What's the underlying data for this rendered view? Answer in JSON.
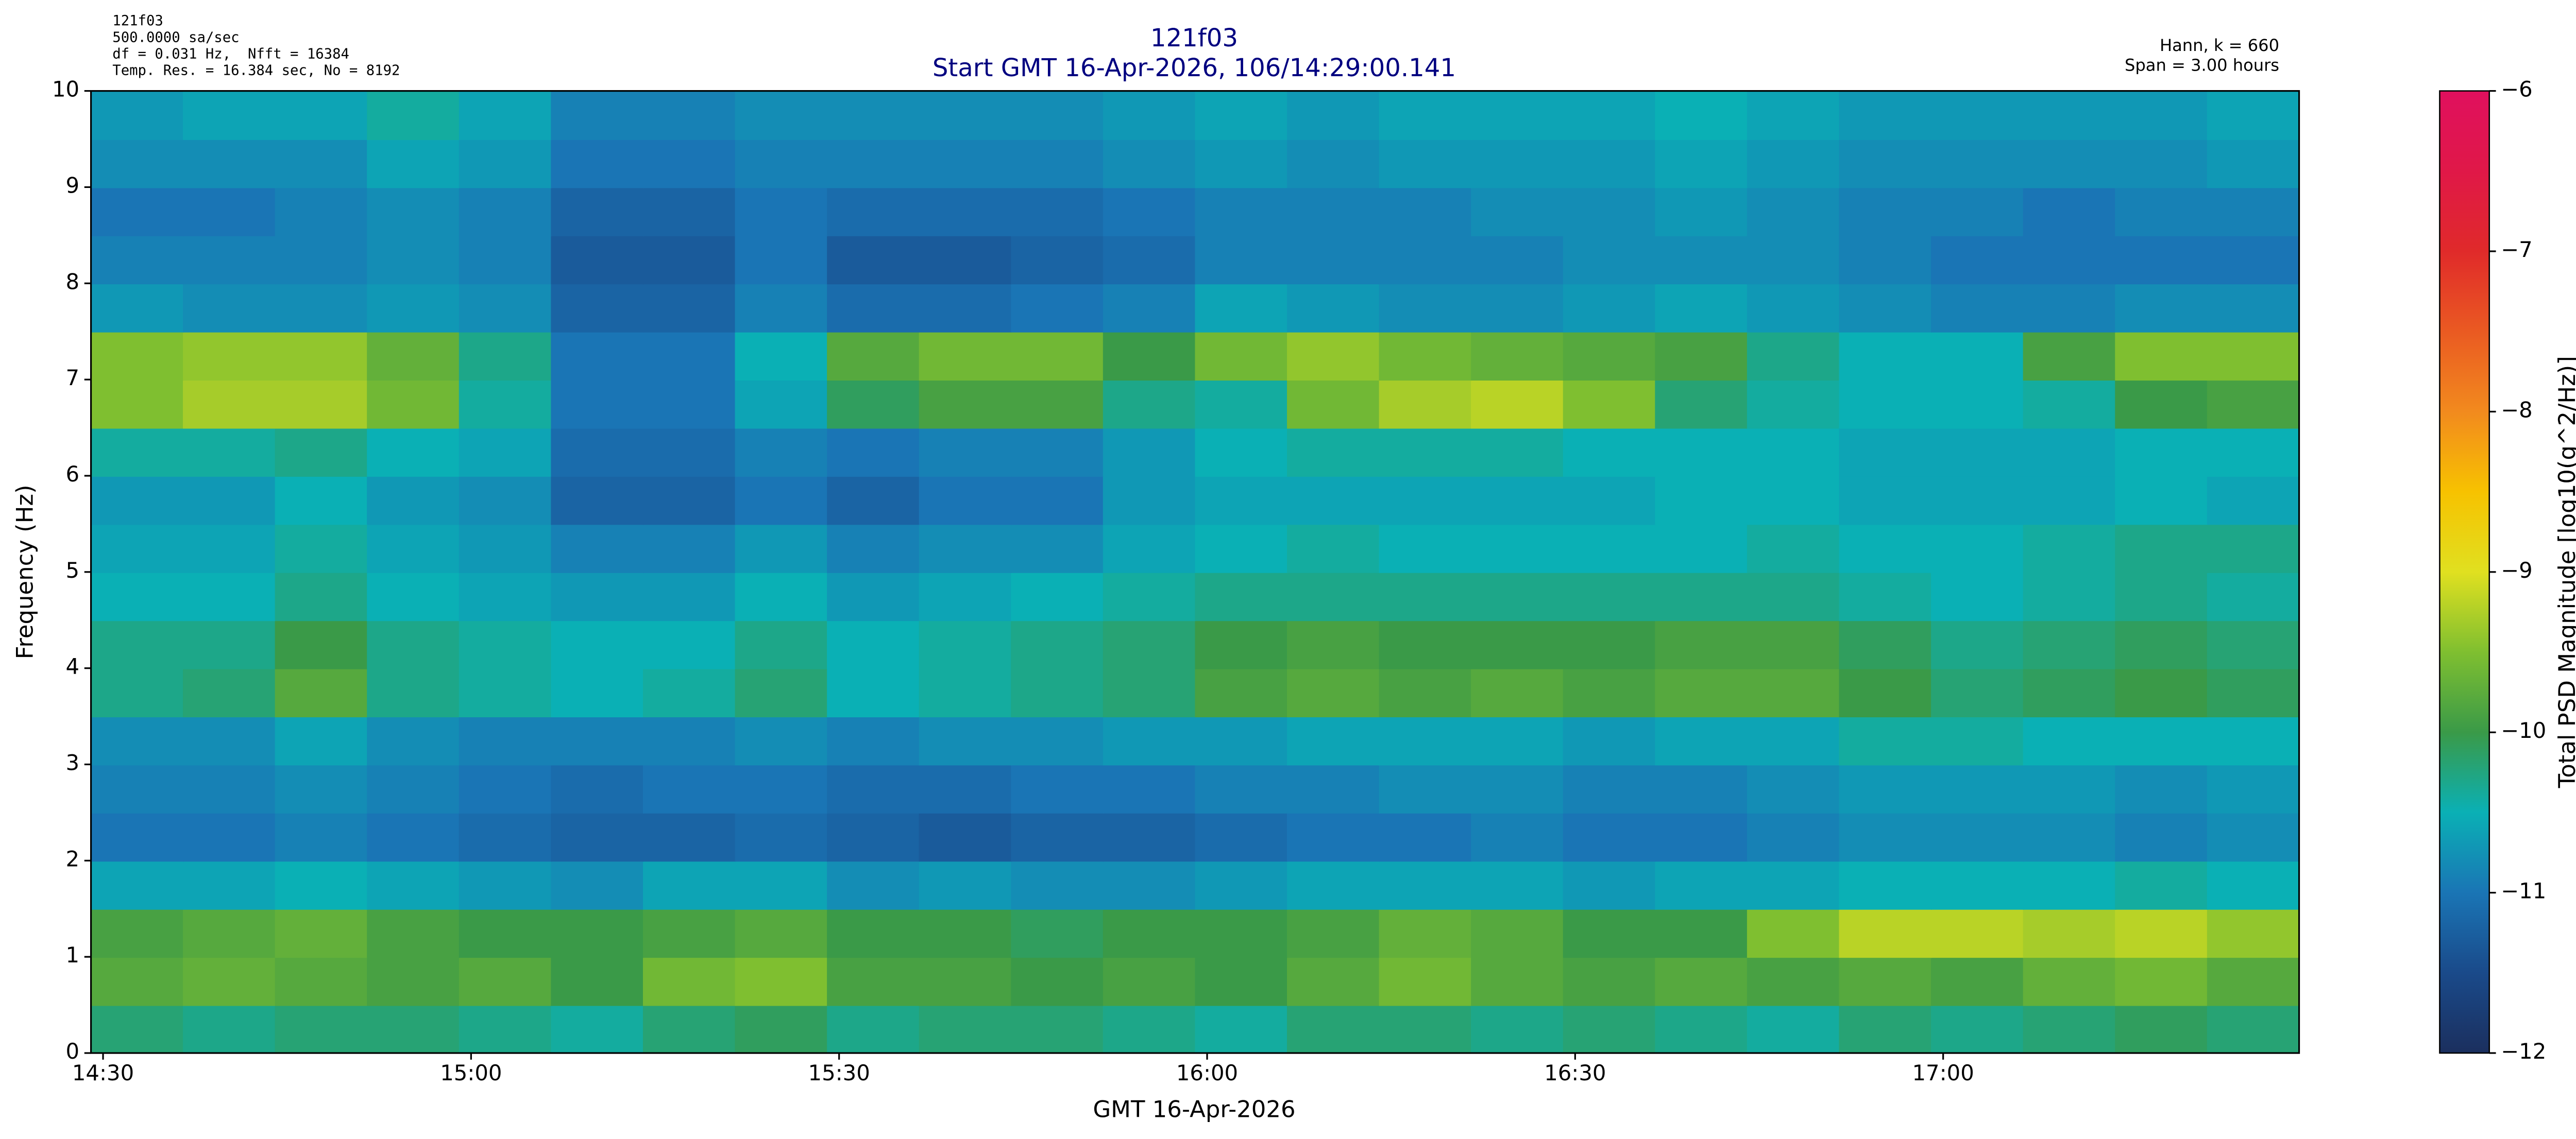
{
  "chart_data": {
    "type": "heatmap",
    "title": "121f03",
    "subtitle": "Start GMT 16-Apr-2026, 106/14:29:00.141",
    "annotations_left": [
      "121f03",
      "500.0000 sa/sec",
      "df = 0.031 Hz,  Nfft = 16384",
      "Temp. Res. = 16.384 sec, No = 8192"
    ],
    "annotations_right": [
      "Hann, k = 660",
      "Span = 3.00 hours"
    ],
    "x_label": "GMT 16-Apr-2026",
    "y_label": "Frequency (Hz)",
    "colorbar_label": "Total PSD Magnitude [log10(g^2/Hz)]",
    "xlim": [
      14.4836,
      17.4836
    ],
    "xticks": [
      {
        "value": 14.5,
        "label": "14:30"
      },
      {
        "value": 15,
        "label": "15:00"
      },
      {
        "value": 15.5,
        "label": "15:30"
      },
      {
        "value": 16,
        "label": "16:00"
      },
      {
        "value": 16.5,
        "label": "16:30"
      },
      {
        "value": 17,
        "label": "17:00"
      }
    ],
    "ylim": [
      0,
      10
    ],
    "yticks": [
      0,
      1,
      2,
      3,
      4,
      5,
      6,
      7,
      8,
      9,
      10
    ],
    "zlim": [
      -12,
      -6
    ],
    "zticks": [
      {
        "value": -12,
        "label": "−12"
      },
      {
        "value": -11,
        "label": "−11"
      },
      {
        "value": -10,
        "label": "−10"
      },
      {
        "value": -9,
        "label": "−9"
      },
      {
        "value": -8,
        "label": "−8"
      },
      {
        "value": -7,
        "label": "−7"
      },
      {
        "value": -6,
        "label": "−6"
      }
    ],
    "colormap": [
      "#1b2f5e",
      "#1a4a8a",
      "#1a75b5",
      "#0ab0b5",
      "#3a9a48",
      "#7fbf30",
      "#e0e020",
      "#f7c200",
      "#f28a1e",
      "#ea5a22",
      "#e02a2a",
      "#e01848",
      "#e0105e"
    ],
    "x": [
      14.546,
      14.671,
      14.796,
      14.921,
      15.046,
      15.171,
      15.296,
      15.421,
      15.546,
      15.671,
      15.796,
      15.921,
      16.046,
      16.171,
      16.296,
      16.421,
      16.546,
      16.671,
      16.796,
      16.921,
      17.046,
      17.171,
      17.296,
      17.421
    ],
    "y": [
      0.25,
      0.75,
      1.25,
      1.75,
      2.25,
      2.75,
      3.25,
      3.75,
      4.25,
      4.75,
      5.25,
      5.75,
      6.25,
      6.75,
      7.25,
      7.75,
      8.25,
      8.75,
      9.25,
      9.75
    ],
    "z": [
      [
        -10.2,
        -10.3,
        -10.2,
        -10.2,
        -10.3,
        -10.4,
        -10.2,
        -10.1,
        -10.3,
        -10.2,
        -10.2,
        -10.3,
        -10.4,
        -10.2,
        -10.2,
        -10.3,
        -10.2,
        -10.3,
        -10.4,
        -10.2,
        -10.3,
        -10.2,
        -10.1,
        -10.2
      ],
      [
        -9.8,
        -9.7,
        -9.8,
        -9.9,
        -9.8,
        -10.0,
        -9.6,
        -9.5,
        -9.9,
        -9.9,
        -10.0,
        -9.9,
        -10.0,
        -9.8,
        -9.6,
        -9.8,
        -9.9,
        -9.8,
        -9.9,
        -9.8,
        -9.9,
        -9.7,
        -9.6,
        -9.8
      ],
      [
        -9.9,
        -9.8,
        -9.7,
        -9.9,
        -10.0,
        -10.0,
        -9.9,
        -9.8,
        -10.0,
        -10.0,
        -10.1,
        -10.0,
        -10.0,
        -9.9,
        -9.7,
        -9.8,
        -10.0,
        -10.0,
        -9.5,
        -9.2,
        -9.2,
        -9.3,
        -9.2,
        -9.4
      ],
      [
        -10.6,
        -10.6,
        -10.5,
        -10.6,
        -10.7,
        -10.8,
        -10.6,
        -10.6,
        -10.8,
        -10.7,
        -10.8,
        -10.8,
        -10.7,
        -10.6,
        -10.6,
        -10.6,
        -10.7,
        -10.6,
        -10.6,
        -10.5,
        -10.5,
        -10.5,
        -10.4,
        -10.5
      ],
      [
        -11.0,
        -11.0,
        -10.9,
        -11.0,
        -11.1,
        -11.2,
        -11.2,
        -11.1,
        -11.2,
        -11.3,
        -11.2,
        -11.2,
        -11.1,
        -11.0,
        -11.0,
        -10.9,
        -11.0,
        -11.0,
        -10.9,
        -10.8,
        -10.8,
        -10.8,
        -10.9,
        -10.8
      ],
      [
        -10.9,
        -10.9,
        -10.8,
        -10.9,
        -11.0,
        -11.1,
        -11.0,
        -11.0,
        -11.1,
        -11.1,
        -11.0,
        -11.0,
        -10.9,
        -10.9,
        -10.8,
        -10.8,
        -10.9,
        -10.9,
        -10.8,
        -10.7,
        -10.7,
        -10.7,
        -10.8,
        -10.7
      ],
      [
        -10.8,
        -10.8,
        -10.6,
        -10.8,
        -10.9,
        -10.9,
        -10.9,
        -10.8,
        -10.9,
        -10.8,
        -10.8,
        -10.7,
        -10.7,
        -10.6,
        -10.6,
        -10.6,
        -10.7,
        -10.6,
        -10.6,
        -10.4,
        -10.4,
        -10.5,
        -10.5,
        -10.5
      ],
      [
        -10.3,
        -10.2,
        -9.8,
        -10.3,
        -10.4,
        -10.5,
        -10.4,
        -10.2,
        -10.5,
        -10.4,
        -10.3,
        -10.2,
        -9.9,
        -9.8,
        -9.9,
        -9.8,
        -9.9,
        -9.8,
        -9.8,
        -10.0,
        -10.2,
        -10.1,
        -10.0,
        -10.1
      ],
      [
        -10.3,
        -10.3,
        -10.0,
        -10.3,
        -10.4,
        -10.5,
        -10.5,
        -10.3,
        -10.5,
        -10.4,
        -10.3,
        -10.2,
        -10.0,
        -9.9,
        -10.0,
        -10.0,
        -10.0,
        -9.9,
        -9.9,
        -10.1,
        -10.3,
        -10.2,
        -10.1,
        -10.2
      ],
      [
        -10.5,
        -10.5,
        -10.3,
        -10.5,
        -10.6,
        -10.7,
        -10.7,
        -10.5,
        -10.7,
        -10.6,
        -10.5,
        -10.4,
        -10.3,
        -10.3,
        -10.3,
        -10.3,
        -10.3,
        -10.3,
        -10.3,
        -10.4,
        -10.5,
        -10.4,
        -10.3,
        -10.4
      ],
      [
        -10.6,
        -10.6,
        -10.4,
        -10.6,
        -10.7,
        -10.9,
        -10.9,
        -10.7,
        -10.9,
        -10.8,
        -10.8,
        -10.6,
        -10.5,
        -10.4,
        -10.5,
        -10.5,
        -10.5,
        -10.5,
        -10.4,
        -10.5,
        -10.5,
        -10.4,
        -10.3,
        -10.3
      ],
      [
        -10.7,
        -10.7,
        -10.5,
        -10.7,
        -10.8,
        -11.2,
        -11.2,
        -11.0,
        -11.2,
        -11.0,
        -11.0,
        -10.7,
        -10.6,
        -10.6,
        -10.6,
        -10.6,
        -10.6,
        -10.5,
        -10.5,
        -10.6,
        -10.6,
        -10.6,
        -10.5,
        -10.6
      ],
      [
        -10.4,
        -10.4,
        -10.3,
        -10.5,
        -10.6,
        -11.1,
        -11.1,
        -10.9,
        -11.0,
        -10.9,
        -10.9,
        -10.7,
        -10.5,
        -10.4,
        -10.4,
        -10.4,
        -10.5,
        -10.5,
        -10.5,
        -10.6,
        -10.6,
        -10.6,
        -10.5,
        -10.5
      ],
      [
        -9.5,
        -9.3,
        -9.3,
        -9.6,
        -10.4,
        -11.0,
        -11.0,
        -10.6,
        -10.1,
        -9.9,
        -9.9,
        -10.3,
        -10.4,
        -9.6,
        -9.3,
        -9.2,
        -9.5,
        -10.2,
        -10.4,
        -10.5,
        -10.5,
        -10.4,
        -10.0,
        -9.9
      ],
      [
        -9.5,
        -9.4,
        -9.4,
        -9.7,
        -10.3,
        -11.0,
        -11.0,
        -10.5,
        -9.8,
        -9.6,
        -9.6,
        -10.0,
        -9.6,
        -9.4,
        -9.6,
        -9.7,
        -9.8,
        -9.9,
        -10.3,
        -10.5,
        -10.5,
        -9.9,
        -9.5,
        -9.5
      ],
      [
        -10.7,
        -10.8,
        -10.8,
        -10.7,
        -10.8,
        -11.2,
        -11.2,
        -10.9,
        -11.1,
        -11.1,
        -11.0,
        -10.9,
        -10.6,
        -10.7,
        -10.8,
        -10.8,
        -10.7,
        -10.6,
        -10.7,
        -10.8,
        -10.9,
        -10.9,
        -10.8,
        -10.8
      ],
      [
        -10.9,
        -10.9,
        -10.9,
        -10.8,
        -10.9,
        -11.3,
        -11.3,
        -11.0,
        -11.3,
        -11.3,
        -11.2,
        -11.1,
        -10.9,
        -10.9,
        -10.9,
        -10.9,
        -10.8,
        -10.8,
        -10.8,
        -10.9,
        -11.0,
        -11.0,
        -11.0,
        -11.0
      ],
      [
        -11.0,
        -11.0,
        -10.9,
        -10.8,
        -10.9,
        -11.2,
        -11.2,
        -11.0,
        -11.1,
        -11.1,
        -11.1,
        -11.0,
        -10.9,
        -10.9,
        -10.9,
        -10.8,
        -10.8,
        -10.7,
        -10.8,
        -10.9,
        -10.9,
        -11.0,
        -10.9,
        -10.9
      ],
      [
        -10.8,
        -10.8,
        -10.8,
        -10.6,
        -10.7,
        -11.0,
        -11.0,
        -10.9,
        -10.9,
        -10.9,
        -10.9,
        -10.8,
        -10.7,
        -10.8,
        -10.7,
        -10.7,
        -10.7,
        -10.6,
        -10.7,
        -10.8,
        -10.8,
        -10.8,
        -10.8,
        -10.7
      ],
      [
        -10.7,
        -10.6,
        -10.6,
        -10.4,
        -10.6,
        -10.9,
        -10.9,
        -10.8,
        -10.8,
        -10.8,
        -10.8,
        -10.7,
        -10.6,
        -10.7,
        -10.6,
        -10.6,
        -10.6,
        -10.5,
        -10.6,
        -10.7,
        -10.7,
        -10.7,
        -10.7,
        -10.6
      ]
    ]
  }
}
